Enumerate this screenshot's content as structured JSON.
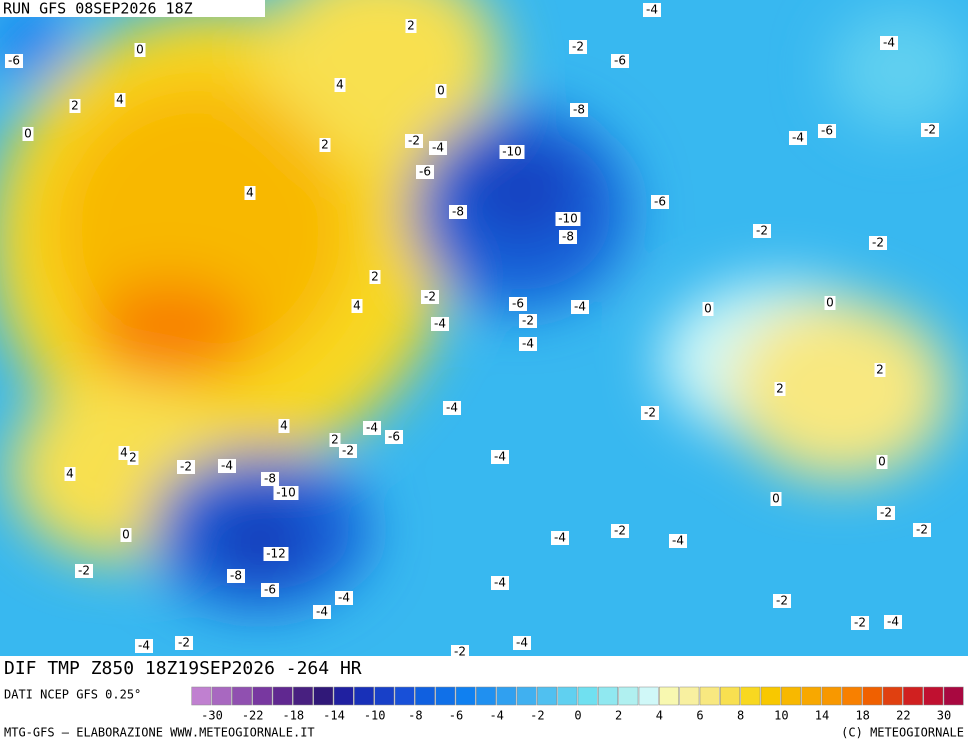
{
  "header": {
    "run": "RUN GFS 08SEP2026 18Z"
  },
  "map": {
    "title": "DIF TMP Z850 18Z19SEP2026 -264 HR",
    "contour_labels": [
      "-6",
      "0",
      "2",
      "-4",
      "-2",
      "-4",
      "-6",
      "2",
      "4",
      "4",
      "0",
      "0",
      "-8",
      "2",
      "-2",
      "-4",
      "-4",
      "-6",
      "-2",
      "-10",
      "-6",
      "4",
      "-8",
      "-6",
      "-10",
      "-8",
      "-2",
      "-2",
      "2",
      "4",
      "-2",
      "-6",
      "-4",
      "-4",
      "-2",
      "0",
      "0",
      "-4",
      "2",
      "2",
      "-4",
      "-2",
      "4",
      "-4",
      "-6",
      "2",
      "-2",
      "4",
      "2",
      "-2",
      "-4",
      "-4",
      "4",
      "-8",
      "-10",
      "0",
      "0",
      "0",
      "-2",
      "-2",
      "-2",
      "-4",
      "-4",
      "-12",
      "-2",
      "-8",
      "-6",
      "-4",
      "-4",
      "-4",
      "-2",
      "-2",
      "-4",
      "-4",
      "-2",
      "-4",
      "-2"
    ]
  },
  "colorbar": {
    "source": "DATI NCEP GFS 0.25°",
    "colors": [
      "#c080d0",
      "#a868c0",
      "#9050b0",
      "#7838a0",
      "#602890",
      "#482080",
      "#301878",
      "#2020a0",
      "#1830b8",
      "#1840c8",
      "#1850d8",
      "#1060e0",
      "#1070e8",
      "#1080f0",
      "#2090f0",
      "#30a0f0",
      "#40b0f0",
      "#50c0f0",
      "#60d0f0",
      "#70e0f0",
      "#90e8f0",
      "#b0f0f0",
      "#d0f8f8",
      "#f8f8b0",
      "#f8f0a0",
      "#f8e880",
      "#f8e050",
      "#f8d820",
      "#f8c800",
      "#f8b800",
      "#f8a800",
      "#f89800",
      "#f88000",
      "#f06000",
      "#e04010",
      "#d02020",
      "#c01030",
      "#a80840"
    ],
    "labels": [
      "-30",
      "-22",
      "-18",
      "-14",
      "-10",
      "-8",
      "-6",
      "-4",
      "-2",
      "0",
      "2",
      "4",
      "6",
      "8",
      "10",
      "14",
      "18",
      "22",
      "30"
    ]
  },
  "footer": {
    "left": "MTG-GFS — ELABORAZIONE WWW.METEOGIORNALE.IT",
    "right": "(C) METEOGIORNALE"
  }
}
